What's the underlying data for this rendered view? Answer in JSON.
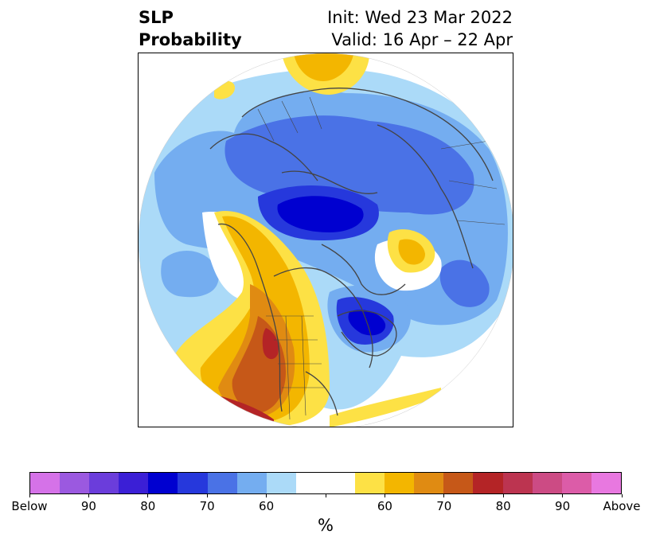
{
  "header": {
    "title_line1": "SLP",
    "title_line2": "Probability",
    "init_line": "Init: Wed 23 Mar 2022",
    "valid_line": "Valid: 16 Apr – 22 Apr"
  },
  "colorbar": {
    "unit": "%",
    "colors": [
      "#d572e8",
      "#9b59e0",
      "#6b3ddb",
      "#3b1fd6",
      "#0000d0",
      "#2638dc",
      "#4a72e6",
      "#74adf0",
      "#abdaf8",
      "#ffffff",
      "#ffffff",
      "#fde145",
      "#f3b600",
      "#e08b12",
      "#c65818",
      "#b42426",
      "#bc3450",
      "#cc4b84",
      "#dc5ca8",
      "#e878e0"
    ],
    "ticks": [
      "Below",
      "90",
      "80",
      "70",
      "60",
      "",
      "60",
      "70",
      "80",
      "90",
      "Above"
    ]
  },
  "colors": {
    "below_deep": "#0000d0",
    "below_mid": "#4a72e6",
    "below_light": "#abdaf8",
    "above_light": "#fde145",
    "above_mid": "#e08b12",
    "above_deep": "#b42426",
    "coastline": "#444444"
  }
}
